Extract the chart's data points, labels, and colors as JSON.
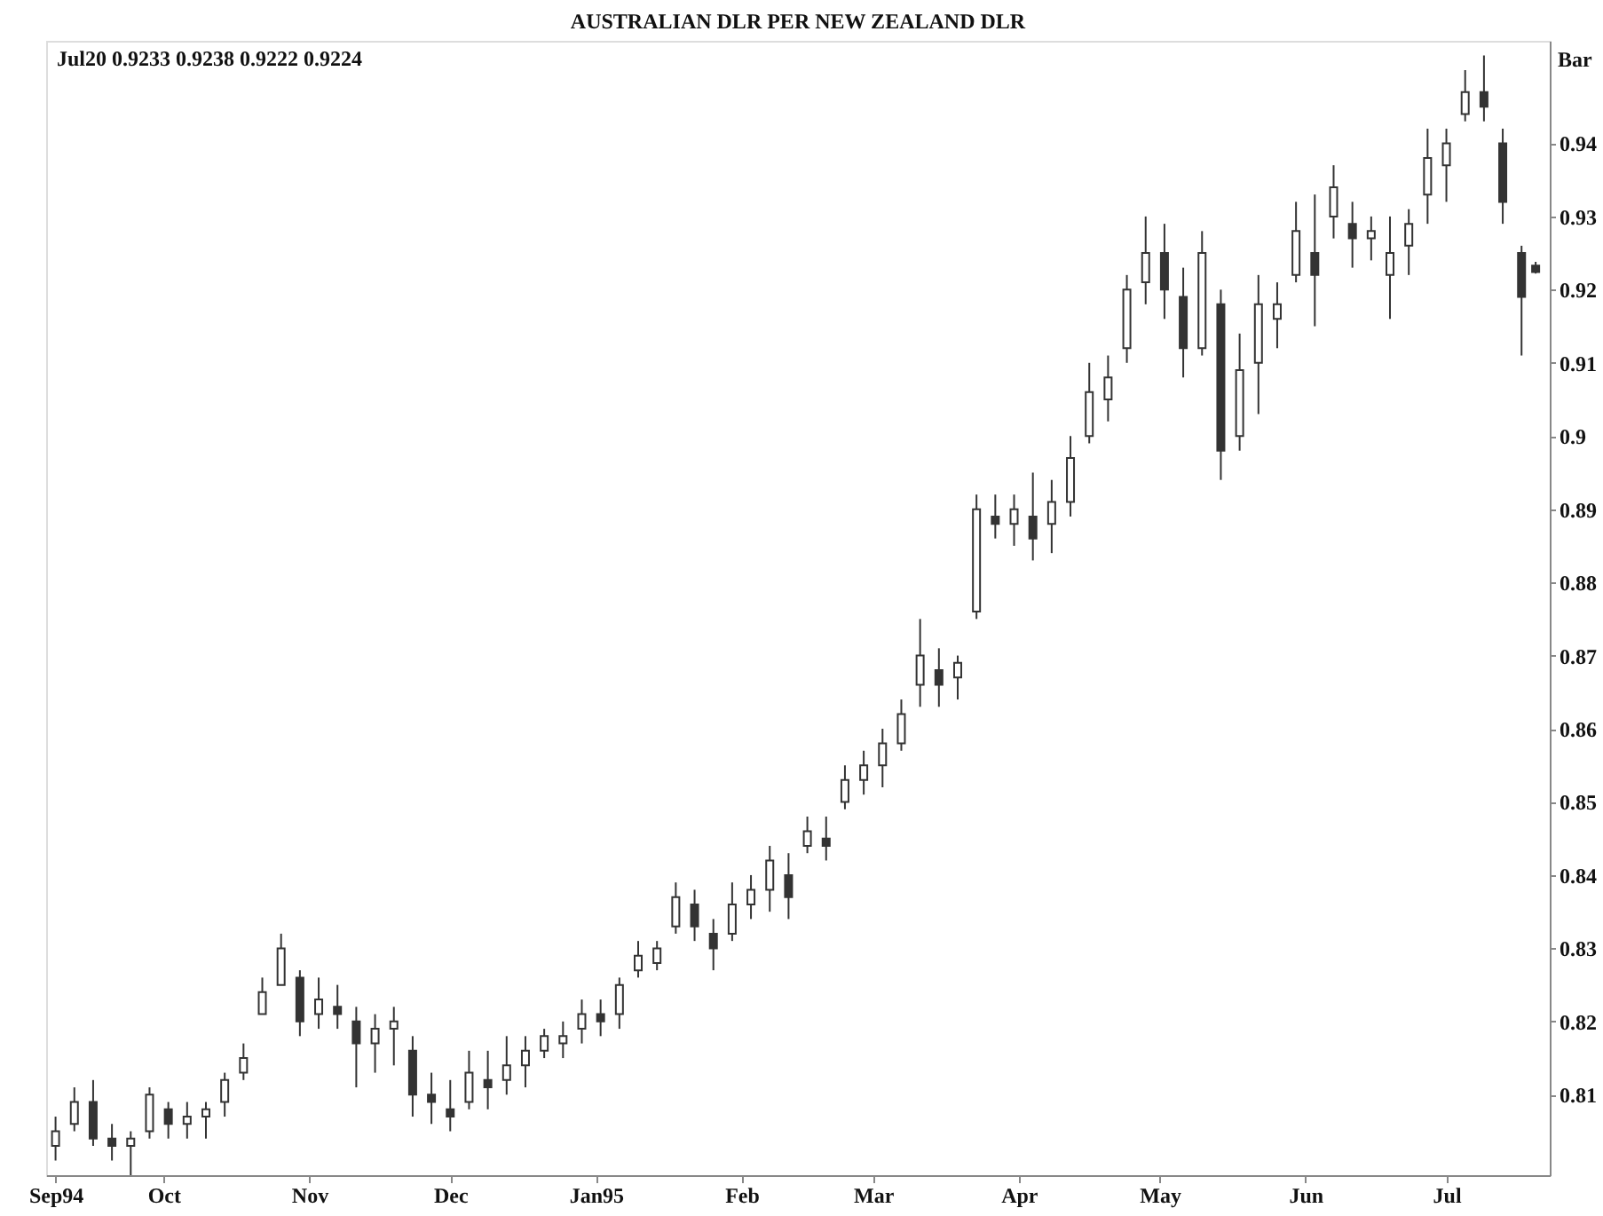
{
  "chart_data": {
    "type": "candlestick",
    "title": "AUSTRALIAN DLR PER NEW ZEALAND DLR",
    "ylabel": "Bar",
    "annotations": [
      "Jul20 0.9233 0.9238 0.9222 0.9224"
    ],
    "color": "#333333",
    "grid": false,
    "ylim": [
      0.799,
      0.954
    ],
    "yticks": [
      0.81,
      0.82,
      0.83,
      0.84,
      0.85,
      0.86,
      0.87,
      0.88,
      0.89,
      0.9,
      0.91,
      0.92,
      0.93,
      0.94
    ],
    "xlim": [
      "1994-09-06",
      "1995-07-23"
    ],
    "xticks": [
      {
        "value": "1994-09-08",
        "label": "Sep94"
      },
      {
        "value": "1994-10-01",
        "label": "Oct"
      },
      {
        "value": "1994-11-01",
        "label": "Nov"
      },
      {
        "value": "1994-12-01",
        "label": "Dec"
      },
      {
        "value": "1995-01-01",
        "label": "Jan95"
      },
      {
        "value": "1995-02-01",
        "label": "Feb"
      },
      {
        "value": "1995-03-01",
        "label": "Mar"
      },
      {
        "value": "1995-04-01",
        "label": "Apr"
      },
      {
        "value": "1995-05-01",
        "label": "May"
      },
      {
        "value": "1995-06-01",
        "label": "Jun"
      },
      {
        "value": "1995-07-01",
        "label": "Jul"
      }
    ],
    "x": [
      "1994-09-08",
      "1994-09-12",
      "1994-09-16",
      "1994-09-20",
      "1994-09-24",
      "1994-09-28",
      "1994-10-02",
      "1994-10-06",
      "1994-10-10",
      "1994-10-14",
      "1994-10-18",
      "1994-10-22",
      "1994-10-26",
      "1994-10-30",
      "1994-11-03",
      "1994-11-07",
      "1994-11-11",
      "1994-11-15",
      "1994-11-19",
      "1994-11-23",
      "1994-11-27",
      "1994-12-01",
      "1994-12-05",
      "1994-12-09",
      "1994-12-13",
      "1994-12-17",
      "1994-12-21",
      "1994-12-25",
      "1994-12-29",
      "1995-01-02",
      "1995-01-06",
      "1995-01-10",
      "1995-01-14",
      "1995-01-18",
      "1995-01-22",
      "1995-01-26",
      "1995-01-30",
      "1995-02-03",
      "1995-02-07",
      "1995-02-11",
      "1995-02-15",
      "1995-02-19",
      "1995-02-23",
      "1995-02-27",
      "1995-03-03",
      "1995-03-07",
      "1995-03-11",
      "1995-03-15",
      "1995-03-19",
      "1995-03-23",
      "1995-03-27",
      "1995-03-31",
      "1995-04-04",
      "1995-04-08",
      "1995-04-12",
      "1995-04-16",
      "1995-04-20",
      "1995-04-24",
      "1995-04-28",
      "1995-05-02",
      "1995-05-06",
      "1995-05-10",
      "1995-05-14",
      "1995-05-18",
      "1995-05-22",
      "1995-05-26",
      "1995-05-30",
      "1995-06-03",
      "1995-06-07",
      "1995-06-11",
      "1995-06-15",
      "1995-06-19",
      "1995-06-23",
      "1995-06-27",
      "1995-07-01",
      "1995-07-05",
      "1995-07-09",
      "1995-07-13",
      "1995-07-17",
      "1995-07-20"
    ],
    "ohlc": [
      [
        0.803,
        0.807,
        0.801,
        0.805
      ],
      [
        0.806,
        0.811,
        0.805,
        0.809
      ],
      [
        0.809,
        0.812,
        0.803,
        0.804
      ],
      [
        0.804,
        0.806,
        0.801,
        0.803
      ],
      [
        0.803,
        0.805,
        0.799,
        0.804
      ],
      [
        0.805,
        0.811,
        0.804,
        0.81
      ],
      [
        0.808,
        0.809,
        0.804,
        0.806
      ],
      [
        0.806,
        0.809,
        0.804,
        0.807
      ],
      [
        0.807,
        0.809,
        0.804,
        0.808
      ],
      [
        0.809,
        0.813,
        0.807,
        0.812
      ],
      [
        0.813,
        0.817,
        0.812,
        0.815
      ],
      [
        0.821,
        0.826,
        0.821,
        0.824
      ],
      [
        0.825,
        0.832,
        0.825,
        0.83
      ],
      [
        0.826,
        0.827,
        0.818,
        0.82
      ],
      [
        0.821,
        0.826,
        0.819,
        0.823
      ],
      [
        0.822,
        0.825,
        0.819,
        0.821
      ],
      [
        0.82,
        0.822,
        0.811,
        0.817
      ],
      [
        0.817,
        0.821,
        0.813,
        0.819
      ],
      [
        0.819,
        0.822,
        0.814,
        0.82
      ],
      [
        0.816,
        0.818,
        0.807,
        0.81
      ],
      [
        0.81,
        0.813,
        0.806,
        0.809
      ],
      [
        0.808,
        0.812,
        0.805,
        0.807
      ],
      [
        0.809,
        0.816,
        0.808,
        0.813
      ],
      [
        0.812,
        0.816,
        0.808,
        0.811
      ],
      [
        0.812,
        0.818,
        0.81,
        0.814
      ],
      [
        0.814,
        0.818,
        0.811,
        0.816
      ],
      [
        0.816,
        0.819,
        0.815,
        0.818
      ],
      [
        0.817,
        0.82,
        0.815,
        0.818
      ],
      [
        0.819,
        0.823,
        0.817,
        0.821
      ],
      [
        0.821,
        0.823,
        0.818,
        0.82
      ],
      [
        0.821,
        0.826,
        0.819,
        0.825
      ],
      [
        0.827,
        0.831,
        0.826,
        0.829
      ],
      [
        0.828,
        0.831,
        0.827,
        0.83
      ],
      [
        0.833,
        0.839,
        0.832,
        0.837
      ],
      [
        0.836,
        0.838,
        0.831,
        0.833
      ],
      [
        0.832,
        0.834,
        0.827,
        0.83
      ],
      [
        0.832,
        0.839,
        0.831,
        0.836
      ],
      [
        0.836,
        0.84,
        0.834,
        0.838
      ],
      [
        0.838,
        0.844,
        0.835,
        0.842
      ],
      [
        0.84,
        0.843,
        0.834,
        0.837
      ],
      [
        0.844,
        0.848,
        0.843,
        0.846
      ],
      [
        0.845,
        0.848,
        0.842,
        0.844
      ],
      [
        0.85,
        0.855,
        0.849,
        0.853
      ],
      [
        0.853,
        0.857,
        0.851,
        0.855
      ],
      [
        0.855,
        0.86,
        0.852,
        0.858
      ],
      [
        0.858,
        0.864,
        0.857,
        0.862
      ],
      [
        0.866,
        0.875,
        0.863,
        0.87
      ],
      [
        0.868,
        0.871,
        0.863,
        0.866
      ],
      [
        0.867,
        0.87,
        0.864,
        0.869
      ],
      [
        0.876,
        0.892,
        0.875,
        0.89
      ],
      [
        0.889,
        0.892,
        0.886,
        0.888
      ],
      [
        0.888,
        0.892,
        0.885,
        0.89
      ],
      [
        0.889,
        0.895,
        0.883,
        0.886
      ],
      [
        0.888,
        0.894,
        0.884,
        0.891
      ],
      [
        0.891,
        0.9,
        0.889,
        0.897
      ],
      [
        0.9,
        0.91,
        0.899,
        0.906
      ],
      [
        0.905,
        0.911,
        0.902,
        0.908
      ],
      [
        0.912,
        0.922,
        0.91,
        0.92
      ],
      [
        0.921,
        0.93,
        0.918,
        0.925
      ],
      [
        0.925,
        0.929,
        0.916,
        0.92
      ],
      [
        0.919,
        0.923,
        0.908,
        0.912
      ],
      [
        0.912,
        0.928,
        0.911,
        0.925
      ],
      [
        0.918,
        0.92,
        0.894,
        0.898
      ],
      [
        0.9,
        0.914,
        0.898,
        0.909
      ],
      [
        0.91,
        0.922,
        0.903,
        0.918
      ],
      [
        0.916,
        0.921,
        0.912,
        0.918
      ],
      [
        0.922,
        0.932,
        0.921,
        0.928
      ],
      [
        0.925,
        0.933,
        0.915,
        0.922
      ],
      [
        0.93,
        0.937,
        0.927,
        0.934
      ],
      [
        0.929,
        0.932,
        0.923,
        0.927
      ],
      [
        0.927,
        0.93,
        0.924,
        0.928
      ],
      [
        0.922,
        0.93,
        0.916,
        0.925
      ],
      [
        0.926,
        0.931,
        0.922,
        0.929
      ],
      [
        0.933,
        0.942,
        0.929,
        0.938
      ],
      [
        0.937,
        0.942,
        0.932,
        0.94
      ],
      [
        0.944,
        0.95,
        0.943,
        0.947
      ],
      [
        0.947,
        0.952,
        0.943,
        0.945
      ],
      [
        0.94,
        0.942,
        0.929,
        0.932
      ],
      [
        0.925,
        0.926,
        0.911,
        0.919
      ],
      [
        0.9233,
        0.9238,
        0.9222,
        0.9224
      ]
    ]
  }
}
